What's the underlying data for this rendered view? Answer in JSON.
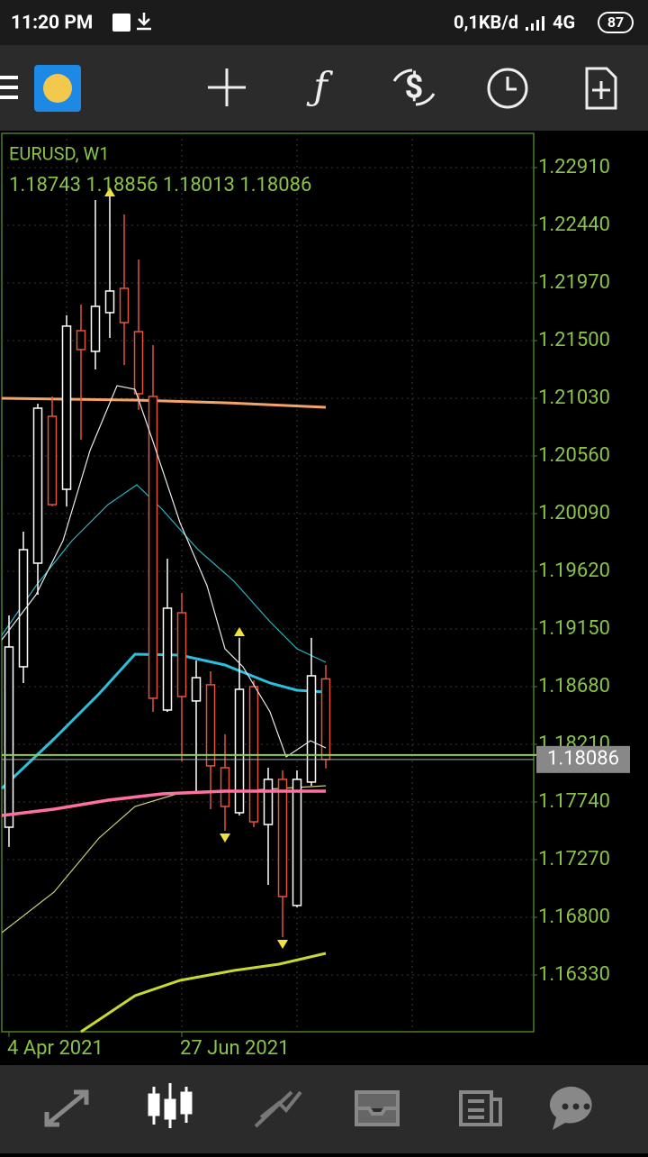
{
  "status_bar": {
    "time": "11:20 PM",
    "speed": "0,1KB/d",
    "network": "4G",
    "battery": "87"
  },
  "chart_data": {
    "type": "candlestick",
    "symbol_label": "EURUSD, W1",
    "ohlc_label": "1.18743 1.18856 1.18013 1.18086",
    "categories": [
      "4 Apr 2021",
      null,
      null,
      null,
      null,
      null,
      null,
      null,
      null,
      null,
      null,
      null,
      "27 Jun 2021",
      null,
      null,
      null,
      null,
      null,
      null,
      null,
      null,
      null,
      null
    ],
    "open": [
      1.17534,
      1.18842,
      1.19686,
      1.20883,
      1.20288,
      1.21581,
      1.21412,
      1.21728,
      1.21926,
      1.21573,
      1.21045,
      1.18489,
      1.19282,
      1.18563,
      1.18695,
      1.18019,
      1.17652,
      1.1868,
      1.17556,
      1.17924,
      1.16896,
      1.17902,
      1.18743
    ],
    "high": [
      1.1926,
      1.19943,
      1.20986,
      1.21045,
      1.21706,
      1.21794,
      1.22646,
      1.22719,
      1.22528,
      1.22161,
      1.21463,
      1.19723,
      1.19444,
      1.18893,
      1.18805,
      1.18291,
      1.19077,
      1.18731,
      1.18019,
      1.17997,
      1.17997,
      1.19077,
      1.18856
    ],
    "low": [
      1.17373,
      1.18709,
      1.19429,
      1.20149,
      1.20149,
      1.20692,
      1.21265,
      1.21522,
      1.21302,
      1.20935,
      1.18474,
      1.18474,
      1.18071,
      1.17813,
      1.17681,
      1.17505,
      1.1763,
      1.17534,
      1.17064,
      1.16638,
      1.16881,
      1.17872,
      1.18013
    ],
    "close": [
      1.19003,
      1.19796,
      1.20949,
      1.20163,
      1.21618,
      1.21427,
      1.21779,
      1.21904,
      1.21647,
      1.21067,
      1.18585,
      1.19319,
      1.18599,
      1.18753,
      1.18034,
      1.17703,
      1.18658,
      1.17578,
      1.17924,
      1.16969,
      1.17924,
      1.18768,
      1.18086
    ],
    "up_color": "#ffffff",
    "down_color": "#e5533d",
    "ylim": [
      1.15867,
      1.23189
    ],
    "yticks": [
      {
        "value": 1.2291,
        "label": "1.22910"
      },
      {
        "value": 1.2244,
        "label": "1.22440"
      },
      {
        "value": 1.2197,
        "label": "1.21970"
      },
      {
        "value": 1.215,
        "label": "1.21500"
      },
      {
        "value": 1.2103,
        "label": "1.21030"
      },
      {
        "value": 1.2056,
        "label": "1.20560"
      },
      {
        "value": 1.2009,
        "label": "1.20090"
      },
      {
        "value": 1.1962,
        "label": "1.19620"
      },
      {
        "value": 1.1915,
        "label": "1.19150"
      },
      {
        "value": 1.1868,
        "label": "1.18680"
      },
      {
        "value": 1.1821,
        "label": "1.18210"
      },
      {
        "value": 1.1774,
        "label": "1.17740"
      },
      {
        "value": 1.1727,
        "label": "1.17270"
      },
      {
        "value": 1.168,
        "label": "1.16800"
      },
      {
        "value": 1.1633,
        "label": "1.16330"
      }
    ],
    "grid": true
  }
}
